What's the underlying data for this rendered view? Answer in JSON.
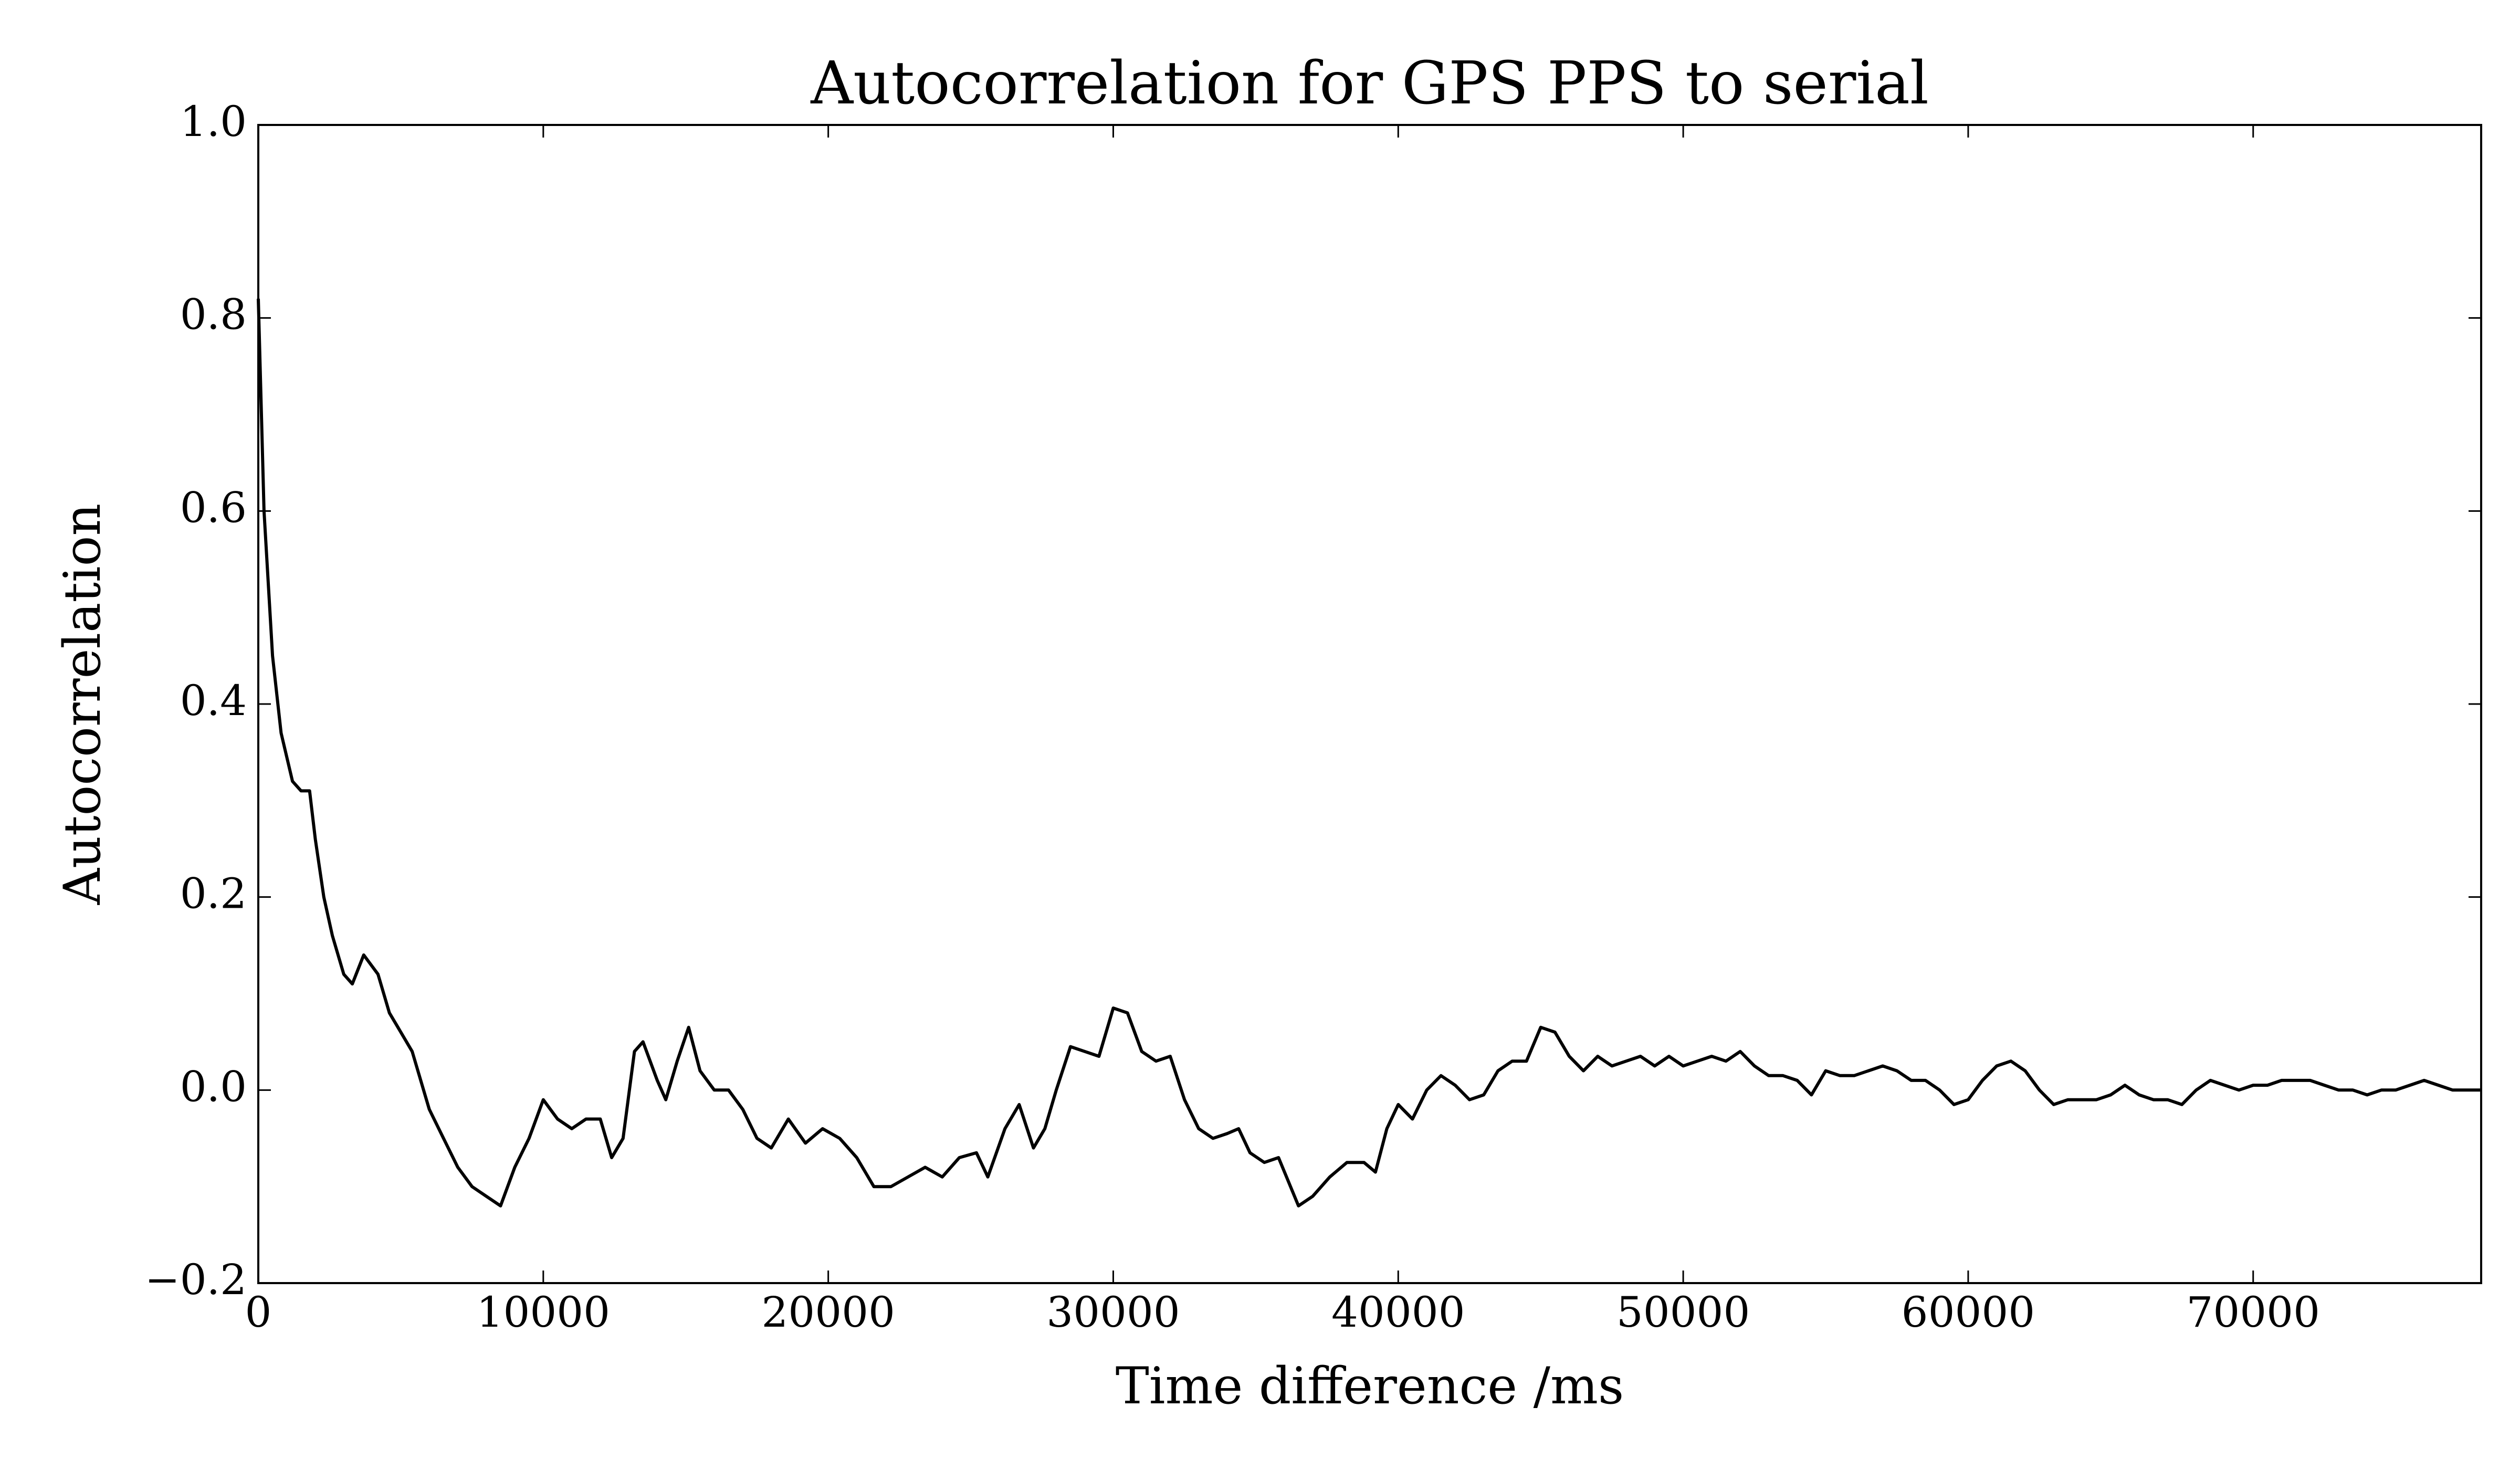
{
  "chart_data": {
    "type": "line",
    "title": "Autocorrelation for GPS PPS to serial",
    "xlabel": "Time difference /ms",
    "ylabel": "Autocorrelation",
    "color": "#000000",
    "xlim": [
      0,
      78000
    ],
    "ylim": [
      -0.2,
      1.0
    ],
    "xticks": [
      0,
      10000,
      20000,
      30000,
      40000,
      50000,
      60000,
      70000
    ],
    "yticks": [
      {
        "value": -0.2,
        "label": "−0.2"
      },
      {
        "value": 0,
        "label": "0.0"
      },
      0.2,
      0.4,
      0.6,
      0.8,
      {
        "value": 1.0,
        "label": "1.0"
      }
    ],
    "x": [
      0,
      200,
      500,
      800,
      1200,
      1500,
      1800,
      2000,
      2300,
      2600,
      3000,
      3300,
      3700,
      4200,
      4600,
      5000,
      5400,
      6000,
      6500,
      7000,
      7500,
      8000,
      8500,
      9000,
      9500,
      10000,
      10500,
      11000,
      11500,
      12000,
      12400,
      12800,
      13200,
      13500,
      14000,
      14300,
      14700,
      15100,
      15500,
      16000,
      16500,
      17000,
      17500,
      18000,
      18600,
      19200,
      19800,
      20400,
      21000,
      21600,
      22200,
      22800,
      23400,
      24000,
      24600,
      25200,
      25600,
      26200,
      26700,
      27200,
      27600,
      28000,
      28500,
      29000,
      29500,
      30000,
      30500,
      31000,
      31500,
      32000,
      32500,
      33000,
      33500,
      34000,
      34400,
      34800,
      35300,
      35800,
      36500,
      37000,
      37600,
      38200,
      38800,
      39200,
      39600,
      40000,
      40500,
      41000,
      41500,
      42000,
      42500,
      43000,
      43500,
      44000,
      44500,
      45000,
      45500,
      46000,
      46500,
      47000,
      47500,
      48000,
      48500,
      49000,
      49500,
      50000,
      50500,
      51000,
      51500,
      52000,
      52500,
      53000,
      53500,
      54000,
      54500,
      55000,
      55500,
      56000,
      56500,
      57000,
      57500,
      58000,
      58500,
      59000,
      59500,
      60000,
      60500,
      61000,
      61500,
      62000,
      62500,
      63000,
      63500,
      64000,
      64500,
      65000,
      65500,
      66000,
      66500,
      67000,
      67500,
      68000,
      68500,
      69000,
      69500,
      70000,
      70500,
      71000,
      71500,
      72000,
      72500,
      73000,
      73500,
      74000,
      74500,
      75000,
      75500,
      76000,
      76500,
      77000,
      77500,
      78000
    ],
    "values": [
      0.82,
      0.6,
      0.45,
      0.37,
      0.32,
      0.31,
      0.31,
      0.26,
      0.2,
      0.16,
      0.12,
      0.11,
      0.14,
      0.12,
      0.08,
      0.06,
      0.04,
      -0.02,
      -0.05,
      -0.08,
      -0.1,
      -0.11,
      -0.12,
      -0.08,
      -0.05,
      -0.01,
      -0.03,
      -0.04,
      -0.03,
      -0.03,
      -0.07,
      -0.05,
      0.04,
      0.05,
      0.01,
      -0.01,
      0.03,
      0.065,
      0.02,
      0.0,
      0.0,
      -0.02,
      -0.05,
      -0.06,
      -0.03,
      -0.055,
      -0.04,
      -0.05,
      -0.07,
      -0.1,
      -0.1,
      -0.09,
      -0.08,
      -0.09,
      -0.07,
      -0.065,
      -0.09,
      -0.04,
      -0.015,
      -0.06,
      -0.04,
      0.0,
      0.045,
      0.04,
      0.035,
      0.085,
      0.08,
      0.04,
      0.03,
      0.035,
      -0.01,
      -0.04,
      -0.05,
      -0.045,
      -0.04,
      -0.065,
      -0.075,
      -0.07,
      -0.12,
      -0.11,
      -0.09,
      -0.075,
      -0.075,
      -0.085,
      -0.04,
      -0.015,
      -0.03,
      0.0,
      0.015,
      0.005,
      -0.01,
      -0.005,
      0.02,
      0.03,
      0.03,
      0.065,
      0.06,
      0.035,
      0.02,
      0.035,
      0.025,
      0.03,
      0.035,
      0.025,
      0.035,
      0.025,
      0.03,
      0.035,
      0.03,
      0.04,
      0.025,
      0.015,
      0.015,
      0.01,
      -0.005,
      0.02,
      0.015,
      0.015,
      0.02,
      0.025,
      0.02,
      0.01,
      0.01,
      0.0,
      -0.015,
      -0.01,
      0.01,
      0.025,
      0.03,
      0.02,
      0.0,
      -0.015,
      -0.01,
      -0.01,
      -0.01,
      -0.005,
      0.005,
      -0.005,
      -0.01,
      -0.01,
      -0.015,
      0.0,
      0.01,
      0.005,
      0.0,
      0.005,
      0.005,
      0.01,
      0.01,
      0.01,
      0.005,
      0.0,
      0.0,
      -0.005,
      0.0,
      0.0,
      0.005,
      0.01,
      0.005,
      0.0,
      0.0,
      0.0
    ]
  }
}
